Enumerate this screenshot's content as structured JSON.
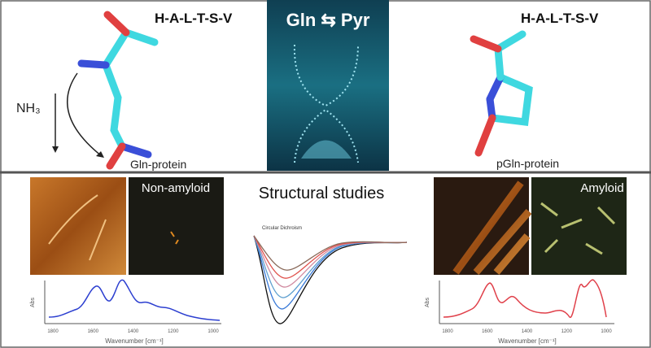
{
  "top": {
    "left": {
      "sequence": "H-A-L-T-S-V",
      "reagent": "NH₃",
      "label": "Gln-protein"
    },
    "center": {
      "title": "Gln ⇆ Pyr"
    },
    "right": {
      "sequence": "H-A-L-T-S-V",
      "label": "pGln-protein"
    }
  },
  "bottom": {
    "title": "Structural studies",
    "left": {
      "image_label": "Non-amyloid",
      "y_label": "Abs",
      "x_label": "Wavenumber [cm⁻¹]",
      "ticks": [
        "1800",
        "1600",
        "1400",
        "1200",
        "1000"
      ]
    },
    "center": {
      "plot_title": "Circular Dichroism"
    },
    "right": {
      "image_label": "Amyloid",
      "y_label": "Abs",
      "x_label": "Wavenumber [cm⁻¹]",
      "ticks": [
        "1800",
        "1600",
        "1400",
        "1200",
        "1000"
      ]
    }
  }
}
